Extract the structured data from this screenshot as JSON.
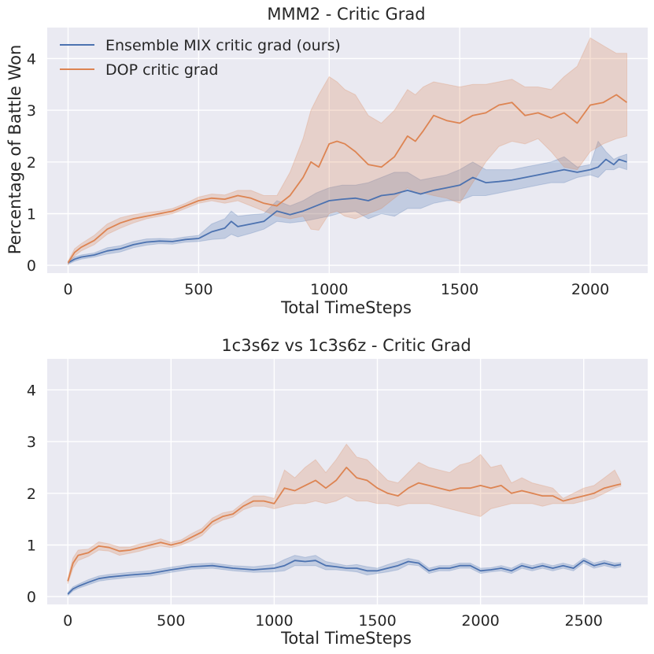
{
  "chart_data": [
    {
      "type": "line",
      "title": "MMM2 - Critic Grad",
      "xlabel": "Total TimeSteps",
      "ylabel": "Percentage of Battle Won",
      "xlim": [
        -80,
        2220
      ],
      "ylim": [
        -0.15,
        4.6
      ],
      "xticks": [
        0,
        500,
        1000,
        1500,
        2000
      ],
      "xtick_labels": [
        "0",
        "500",
        "1000",
        "1500",
        "2000"
      ],
      "yticks": [
        0,
        1,
        2,
        3,
        4
      ],
      "ytick_labels": [
        "0",
        "1",
        "2",
        "3",
        "4"
      ],
      "grid": true,
      "legend": "top-left",
      "series": [
        {
          "name": "Ensemble MIX critic grad (ours)",
          "color": "#4c72b0",
          "x": [
            0,
            25,
            50,
            100,
            150,
            200,
            250,
            300,
            350,
            400,
            450,
            500,
            550,
            600,
            625,
            650,
            700,
            750,
            800,
            850,
            900,
            950,
            1000,
            1050,
            1100,
            1150,
            1200,
            1250,
            1300,
            1350,
            1400,
            1450,
            1500,
            1550,
            1600,
            1650,
            1700,
            1750,
            1800,
            1850,
            1900,
            1950,
            2000,
            2030,
            2060,
            2090,
            2110,
            2140
          ],
          "y": [
            0.05,
            0.12,
            0.16,
            0.2,
            0.28,
            0.32,
            0.4,
            0.45,
            0.47,
            0.46,
            0.5,
            0.52,
            0.65,
            0.72,
            0.85,
            0.75,
            0.8,
            0.85,
            1.05,
            0.98,
            1.05,
            1.15,
            1.25,
            1.28,
            1.3,
            1.25,
            1.35,
            1.38,
            1.45,
            1.38,
            1.45,
            1.5,
            1.55,
            1.7,
            1.6,
            1.62,
            1.65,
            1.7,
            1.75,
            1.8,
            1.85,
            1.8,
            1.85,
            1.9,
            2.05,
            1.95,
            2.05,
            2.0
          ],
          "lower": [
            0.02,
            0.08,
            0.12,
            0.16,
            0.22,
            0.26,
            0.34,
            0.39,
            0.42,
            0.41,
            0.45,
            0.46,
            0.5,
            0.52,
            0.6,
            0.55,
            0.62,
            0.7,
            0.85,
            0.82,
            0.85,
            0.9,
            0.95,
            1.02,
            1.05,
            0.9,
            1.0,
            0.95,
            1.1,
            1.1,
            1.2,
            1.25,
            1.25,
            1.35,
            1.35,
            1.4,
            1.45,
            1.5,
            1.55,
            1.6,
            1.6,
            1.7,
            1.75,
            1.7,
            1.85,
            1.85,
            1.9,
            1.85
          ],
          "upper": [
            0.08,
            0.16,
            0.2,
            0.24,
            0.34,
            0.38,
            0.46,
            0.51,
            0.52,
            0.51,
            0.55,
            0.58,
            0.8,
            0.9,
            1.05,
            0.95,
            0.98,
            1.0,
            1.25,
            1.15,
            1.25,
            1.4,
            1.5,
            1.55,
            1.55,
            1.6,
            1.7,
            1.8,
            1.8,
            1.65,
            1.7,
            1.75,
            1.85,
            2.0,
            1.85,
            1.85,
            1.85,
            1.9,
            1.95,
            2.0,
            2.1,
            1.9,
            1.95,
            2.4,
            2.2,
            2.05,
            2.1,
            2.15
          ]
        },
        {
          "name": "DOP critic grad",
          "color": "#dd8452",
          "x": [
            0,
            25,
            50,
            100,
            150,
            200,
            250,
            300,
            350,
            400,
            450,
            500,
            550,
            600,
            650,
            700,
            750,
            800,
            850,
            900,
            930,
            960,
            1000,
            1030,
            1060,
            1100,
            1150,
            1200,
            1250,
            1300,
            1330,
            1360,
            1400,
            1450,
            1500,
            1550,
            1600,
            1650,
            1700,
            1750,
            1800,
            1850,
            1900,
            1950,
            2000,
            2050,
            2100,
            2140
          ],
          "y": [
            0.05,
            0.25,
            0.35,
            0.48,
            0.7,
            0.82,
            0.9,
            0.95,
            1.0,
            1.05,
            1.15,
            1.25,
            1.3,
            1.28,
            1.35,
            1.3,
            1.2,
            1.15,
            1.35,
            1.7,
            2.0,
            1.9,
            2.35,
            2.4,
            2.35,
            2.2,
            1.95,
            1.9,
            2.1,
            2.5,
            2.4,
            2.6,
            2.9,
            2.8,
            2.75,
            2.9,
            2.95,
            3.1,
            3.15,
            2.9,
            2.95,
            2.85,
            2.95,
            2.75,
            3.1,
            3.15,
            3.3,
            3.15
          ],
          "lower": [
            0.02,
            0.18,
            0.28,
            0.4,
            0.6,
            0.72,
            0.82,
            0.9,
            0.95,
            1.0,
            1.1,
            1.2,
            1.25,
            1.2,
            1.25,
            1.15,
            1.05,
            0.95,
            0.9,
            0.95,
            0.7,
            0.68,
            1.0,
            1.05,
            0.95,
            0.9,
            1.0,
            1.1,
            1.3,
            1.5,
            1.4,
            1.4,
            1.35,
            1.3,
            1.2,
            1.6,
            2.0,
            2.3,
            2.4,
            2.35,
            2.45,
            2.2,
            1.9,
            1.85,
            2.2,
            2.35,
            2.45,
            2.5
          ],
          "upper": [
            0.08,
            0.32,
            0.42,
            0.58,
            0.8,
            0.92,
            0.98,
            1.02,
            1.05,
            1.1,
            1.2,
            1.32,
            1.38,
            1.36,
            1.45,
            1.45,
            1.35,
            1.35,
            1.8,
            2.45,
            3.0,
            3.3,
            3.65,
            3.55,
            3.4,
            3.3,
            2.9,
            2.75,
            3.0,
            3.4,
            3.3,
            3.45,
            3.55,
            3.5,
            3.45,
            3.5,
            3.5,
            3.55,
            3.6,
            3.45,
            3.45,
            3.4,
            3.65,
            3.85,
            4.4,
            4.25,
            4.1,
            4.1
          ]
        }
      ]
    },
    {
      "type": "line",
      "title": "1c3s6z vs 1c3s6z - Critic Grad",
      "xlabel": "Total TimeSteps",
      "ylabel": "",
      "xlim": [
        -100,
        2810
      ],
      "ylim": [
        -0.15,
        4.6
      ],
      "xticks": [
        0,
        500,
        1000,
        1500,
        2000,
        2500
      ],
      "xtick_labels": [
        "0",
        "500",
        "1000",
        "1500",
        "2000",
        "2500"
      ],
      "yticks": [
        0,
        1,
        2,
        3,
        4
      ],
      "ytick_labels": [
        "0",
        "1",
        "2",
        "3",
        "4"
      ],
      "grid": true,
      "legend": "none",
      "series": [
        {
          "name": "Ensemble MIX critic grad (ours)",
          "color": "#4c72b0",
          "x": [
            0,
            25,
            50,
            100,
            150,
            200,
            300,
            400,
            500,
            600,
            700,
            800,
            900,
            1000,
            1050,
            1100,
            1150,
            1200,
            1250,
            1300,
            1350,
            1400,
            1450,
            1500,
            1550,
            1600,
            1650,
            1700,
            1750,
            1800,
            1850,
            1900,
            1950,
            2000,
            2050,
            2100,
            2150,
            2200,
            2250,
            2300,
            2350,
            2400,
            2450,
            2500,
            2550,
            2600,
            2650,
            2680
          ],
          "y": [
            0.05,
            0.15,
            0.2,
            0.28,
            0.35,
            0.38,
            0.42,
            0.45,
            0.52,
            0.58,
            0.6,
            0.55,
            0.52,
            0.55,
            0.6,
            0.7,
            0.68,
            0.7,
            0.6,
            0.58,
            0.55,
            0.55,
            0.5,
            0.5,
            0.55,
            0.6,
            0.68,
            0.65,
            0.5,
            0.55,
            0.55,
            0.6,
            0.6,
            0.5,
            0.52,
            0.55,
            0.5,
            0.6,
            0.55,
            0.6,
            0.55,
            0.6,
            0.55,
            0.7,
            0.6,
            0.65,
            0.6,
            0.62
          ],
          "lower": [
            0.02,
            0.11,
            0.16,
            0.23,
            0.3,
            0.33,
            0.37,
            0.4,
            0.47,
            0.53,
            0.55,
            0.5,
            0.47,
            0.48,
            0.5,
            0.6,
            0.6,
            0.6,
            0.52,
            0.52,
            0.5,
            0.48,
            0.42,
            0.45,
            0.48,
            0.52,
            0.62,
            0.6,
            0.45,
            0.5,
            0.5,
            0.55,
            0.55,
            0.45,
            0.48,
            0.5,
            0.45,
            0.55,
            0.5,
            0.55,
            0.5,
            0.55,
            0.5,
            0.65,
            0.55,
            0.6,
            0.55,
            0.58
          ],
          "upper": [
            0.08,
            0.19,
            0.24,
            0.33,
            0.4,
            0.43,
            0.47,
            0.5,
            0.57,
            0.63,
            0.65,
            0.6,
            0.58,
            0.62,
            0.72,
            0.8,
            0.76,
            0.8,
            0.68,
            0.64,
            0.6,
            0.62,
            0.58,
            0.55,
            0.62,
            0.68,
            0.74,
            0.7,
            0.55,
            0.6,
            0.6,
            0.65,
            0.65,
            0.55,
            0.56,
            0.6,
            0.55,
            0.65,
            0.6,
            0.65,
            0.6,
            0.65,
            0.6,
            0.75,
            0.65,
            0.7,
            0.65,
            0.66
          ]
        },
        {
          "name": "DOP critic grad",
          "color": "#dd8452",
          "x": [
            0,
            25,
            50,
            100,
            150,
            200,
            250,
            300,
            350,
            400,
            450,
            500,
            550,
            600,
            650,
            700,
            750,
            800,
            850,
            900,
            950,
            1000,
            1050,
            1100,
            1150,
            1200,
            1250,
            1300,
            1350,
            1400,
            1450,
            1500,
            1550,
            1600,
            1650,
            1700,
            1750,
            1800,
            1850,
            1900,
            1950,
            2000,
            2050,
            2100,
            2150,
            2200,
            2250,
            2300,
            2350,
            2400,
            2450,
            2500,
            2550,
            2600,
            2650,
            2680
          ],
          "y": [
            0.3,
            0.65,
            0.8,
            0.85,
            0.98,
            0.95,
            0.88,
            0.9,
            0.95,
            1.0,
            1.05,
            1.0,
            1.05,
            1.15,
            1.25,
            1.45,
            1.55,
            1.6,
            1.75,
            1.85,
            1.85,
            1.8,
            2.1,
            2.05,
            2.15,
            2.25,
            2.1,
            2.25,
            2.5,
            2.3,
            2.25,
            2.1,
            2.0,
            1.95,
            2.1,
            2.2,
            2.15,
            2.1,
            2.05,
            2.1,
            2.1,
            2.15,
            2.1,
            2.15,
            2.0,
            2.05,
            2.0,
            1.95,
            1.95,
            1.85,
            1.9,
            1.95,
            2.0,
            2.1,
            2.15,
            2.18
          ],
          "lower": [
            0.25,
            0.55,
            0.7,
            0.78,
            0.9,
            0.88,
            0.8,
            0.84,
            0.88,
            0.94,
            0.98,
            0.95,
            1.0,
            1.08,
            1.18,
            1.38,
            1.48,
            1.54,
            1.68,
            1.75,
            1.75,
            1.7,
            1.75,
            1.8,
            1.8,
            1.85,
            1.8,
            1.85,
            1.95,
            1.85,
            1.85,
            1.8,
            1.8,
            1.75,
            1.8,
            1.8,
            1.8,
            1.75,
            1.7,
            1.65,
            1.6,
            1.55,
            1.7,
            1.75,
            1.8,
            1.8,
            1.8,
            1.75,
            1.8,
            1.8,
            1.8,
            1.85,
            1.9,
            2.0,
            2.1,
            2.14
          ],
          "upper": [
            0.35,
            0.75,
            0.9,
            0.92,
            1.06,
            1.02,
            0.96,
            0.96,
            1.02,
            1.06,
            1.12,
            1.05,
            1.1,
            1.22,
            1.32,
            1.52,
            1.62,
            1.66,
            1.82,
            1.95,
            1.95,
            1.9,
            2.45,
            2.3,
            2.5,
            2.65,
            2.4,
            2.65,
            2.95,
            2.7,
            2.65,
            2.45,
            2.25,
            2.2,
            2.4,
            2.6,
            2.5,
            2.45,
            2.4,
            2.55,
            2.6,
            2.75,
            2.5,
            2.55,
            2.2,
            2.3,
            2.2,
            2.15,
            2.1,
            1.9,
            2.0,
            2.1,
            2.15,
            2.3,
            2.45,
            2.22
          ]
        }
      ]
    }
  ]
}
